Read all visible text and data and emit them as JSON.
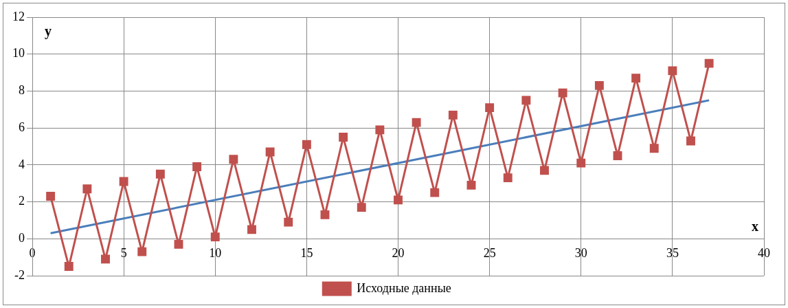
{
  "chart_data": {
    "type": "line",
    "xlabel": "x",
    "ylabel": "y",
    "xlim": [
      0,
      40
    ],
    "xticks": [
      0,
      5,
      10,
      15,
      20,
      25,
      30,
      35,
      40
    ],
    "ylim": [
      -2,
      12
    ],
    "yticks": [
      -2,
      0,
      2,
      4,
      6,
      8,
      10,
      12
    ],
    "grid": true,
    "legend": "bottom",
    "marker": "square",
    "line_style": "solid",
    "series": [
      {
        "name": "Исходные данные",
        "color": "#c0504d",
        "x": [
          1,
          2,
          3,
          4,
          5,
          6,
          7,
          8,
          9,
          10,
          11,
          12,
          13,
          14,
          15,
          16,
          17,
          18,
          19,
          20,
          21,
          22,
          23,
          24,
          25,
          26,
          27,
          28,
          29,
          30,
          31,
          32,
          33,
          34,
          35,
          36,
          37
        ],
        "values": [
          2.3,
          -1.5,
          2.7,
          -1.1,
          3.1,
          -0.7,
          3.5,
          -0.3,
          3.9,
          0.1,
          4.3,
          0.5,
          4.7,
          0.9,
          5.1,
          1.3,
          5.5,
          1.7,
          5.9,
          2.1,
          6.3,
          2.5,
          6.7,
          2.9,
          7.1,
          3.3,
          7.5,
          3.7,
          7.9,
          4.1,
          8.3,
          4.5,
          8.7,
          4.9,
          9.1,
          5.3,
          9.5
        ]
      },
      {
        "type": "line",
        "color": "#4a7ebb",
        "marker": "none",
        "x": [
          1,
          37
        ],
        "values": [
          0.3,
          7.5
        ]
      }
    ]
  }
}
